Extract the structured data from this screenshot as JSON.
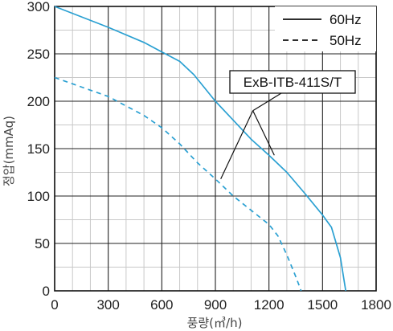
{
  "chart_data": {
    "type": "line",
    "xlabel": "풍량(㎥/h)",
    "ylabel": "정압(mmAq)",
    "xlim": [
      0,
      1800
    ],
    "ylim": [
      0,
      300
    ],
    "x_ticks": [
      "0",
      "300",
      "600",
      "900",
      "1200",
      "1500",
      "1800"
    ],
    "y_ticks": [
      "0",
      "50",
      "100",
      "150",
      "200",
      "250",
      "300"
    ],
    "x_minor_step": 100,
    "y_minor_step": 25,
    "grid": true,
    "legend_position": "top-right",
    "series": [
      {
        "name": "60Hz",
        "style": "solid",
        "color": "#2aa0d2",
        "x": [
          0,
          300,
          500,
          600,
          700,
          780,
          900,
          1000,
          1100,
          1200,
          1300,
          1400,
          1500,
          1550,
          1600,
          1630
        ],
        "y": [
          300,
          278,
          262,
          252,
          242,
          228,
          200,
          180,
          160,
          143,
          125,
          103,
          80,
          67,
          35,
          0
        ]
      },
      {
        "name": "50Hz",
        "style": "dashed",
        "color": "#2aa0d2",
        "x": [
          0,
          300,
          500,
          600,
          700,
          800,
          900,
          1000,
          1100,
          1200,
          1250,
          1300,
          1350,
          1380
        ],
        "y": [
          225,
          205,
          185,
          172,
          155,
          135,
          118,
          100,
          85,
          70,
          58,
          38,
          15,
          0
        ]
      }
    ],
    "annotation": {
      "text": "ExB-ITB-411S/T",
      "pointer_origin": [
        1110,
        190
      ],
      "pointer_targets": [
        [
          930,
          118
        ],
        [
          1230,
          143
        ]
      ]
    }
  }
}
